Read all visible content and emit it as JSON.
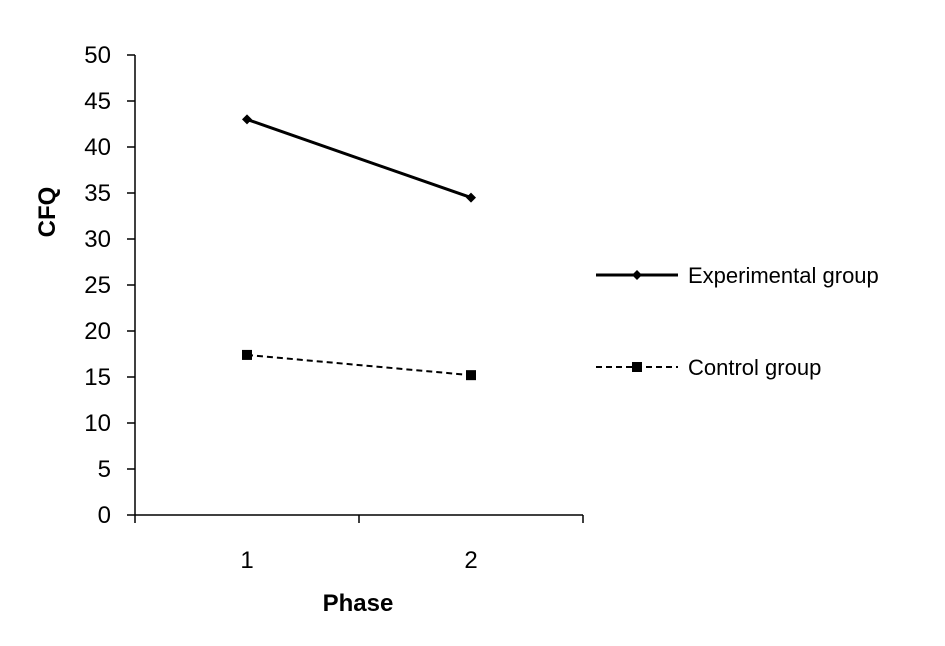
{
  "chart_data": {
    "type": "line",
    "title": "",
    "xlabel": "Phase",
    "ylabel": "CFQ",
    "categories": [
      "1",
      "2"
    ],
    "ylim": [
      0,
      50
    ],
    "yticks": [
      "0",
      "5",
      "10",
      "15",
      "20",
      "25",
      "30",
      "35",
      "40",
      "45",
      "50"
    ],
    "grid": false,
    "legend_position": "right",
    "series": [
      {
        "name": "Experimental group",
        "values": [
          43.0,
          34.5
        ],
        "marker": "diamond",
        "line_style": "solid",
        "color": "#000000"
      },
      {
        "name": "Control group",
        "values": [
          17.4,
          15.2
        ],
        "marker": "square",
        "line_style": "dashed",
        "color": "#000000"
      }
    ]
  }
}
